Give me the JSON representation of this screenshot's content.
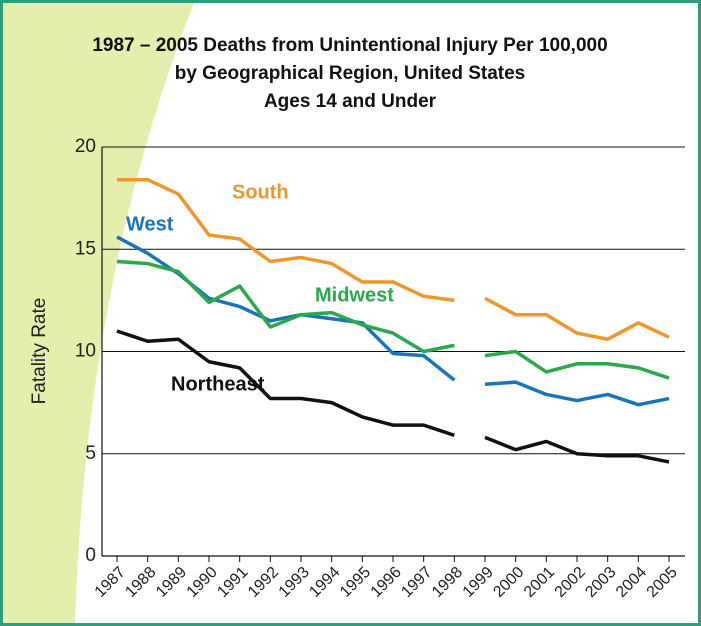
{
  "chart_data": {
    "type": "line",
    "title": [
      "1987 – 2005 Deaths from Unintentional Injury Per 100,000",
      "by Geographical Region, United States",
      "Ages 14 and Under"
    ],
    "ylabel": "Fatality Rate",
    "x": [
      1987,
      1988,
      1989,
      1990,
      1991,
      1992,
      1993,
      1994,
      1995,
      1996,
      1997,
      1998,
      1999,
      2000,
      2001,
      2002,
      2003,
      2004,
      2005
    ],
    "xlim": [
      1987,
      2005
    ],
    "xticks": [
      1987,
      1988,
      1989,
      1990,
      1991,
      1992,
      1993,
      1994,
      1995,
      1996,
      1997,
      1998,
      1999,
      2000,
      2001,
      2002,
      2003,
      2004,
      2005
    ],
    "gap_after": 1998,
    "ylim": [
      0,
      20
    ],
    "yticks": [
      0,
      5,
      10,
      15,
      20
    ],
    "grid": true,
    "series": [
      {
        "name": "South",
        "color": "#f0962e",
        "values": [
          18.4,
          18.4,
          17.7,
          15.7,
          15.5,
          14.4,
          14.6,
          14.3,
          13.4,
          13.4,
          12.7,
          12.5,
          12.6,
          11.8,
          11.8,
          10.9,
          10.6,
          11.4,
          10.7
        ]
      },
      {
        "name": "West",
        "color": "#1a74ba",
        "values": [
          15.6,
          14.8,
          13.8,
          12.6,
          12.2,
          11.5,
          11.8,
          11.6,
          11.4,
          9.9,
          9.8,
          8.6,
          8.4,
          8.5,
          7.9,
          7.6,
          7.9,
          7.4,
          7.7
        ]
      },
      {
        "name": "Midwest",
        "color": "#2aa84a",
        "values": [
          14.4,
          14.3,
          13.9,
          12.4,
          13.2,
          11.2,
          11.8,
          11.9,
          11.3,
          10.9,
          10.0,
          10.3,
          9.8,
          10.0,
          9.0,
          9.4,
          9.4,
          9.2,
          8.7
        ]
      },
      {
        "name": "Northeast",
        "color": "#111111",
        "values": [
          11.0,
          10.5,
          10.6,
          9.5,
          9.2,
          7.7,
          7.7,
          7.5,
          6.8,
          6.4,
          6.4,
          5.9,
          5.8,
          5.2,
          5.6,
          5.0,
          4.9,
          4.9,
          4.6
        ]
      }
    ]
  }
}
